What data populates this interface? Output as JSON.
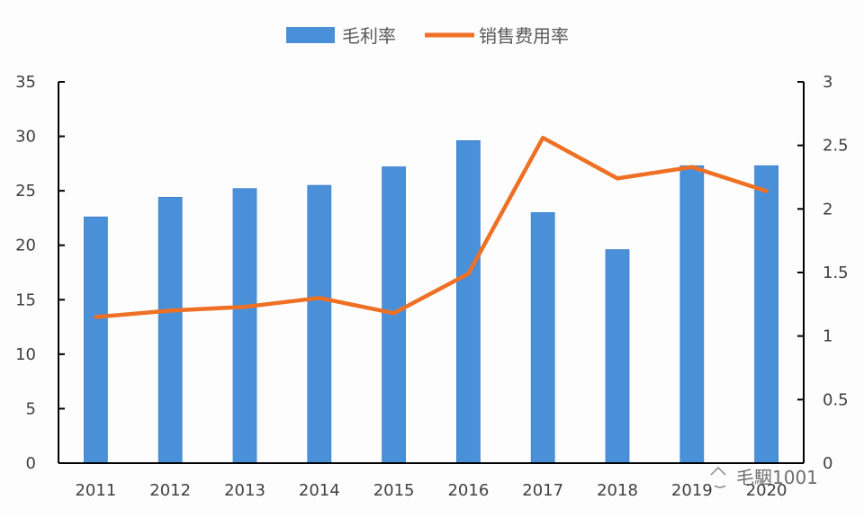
{
  "chart_data": {
    "type": "bar+line",
    "title": "",
    "categories": [
      "2011",
      "2012",
      "2013",
      "2014",
      "2015",
      "2016",
      "2017",
      "2018",
      "2019",
      "2020"
    ],
    "series": [
      {
        "name": "毛利率",
        "type": "bar",
        "axis": "left",
        "color": "#4a90d9",
        "values": [
          22.6,
          24.4,
          25.2,
          25.5,
          27.2,
          29.6,
          23.0,
          19.6,
          27.3,
          27.3
        ]
      },
      {
        "name": "销售费用率",
        "type": "line",
        "axis": "right",
        "color": "#ee7024",
        "values": [
          1.15,
          1.2,
          1.23,
          1.3,
          1.18,
          1.49,
          2.56,
          2.24,
          2.33,
          2.14
        ]
      }
    ],
    "left_axis": {
      "min": 0,
      "max": 35,
      "step": 5,
      "ticks": [
        "0",
        "5",
        "10",
        "15",
        "20",
        "25",
        "30",
        "35"
      ]
    },
    "right_axis": {
      "min": 0,
      "max": 3,
      "step": 0.5,
      "ticks": [
        "0",
        "0.5",
        "1",
        "1.5",
        "2",
        "2.5",
        "3"
      ]
    },
    "xlabel": "",
    "ylabel": "",
    "grid": false,
    "legend_position": "top"
  },
  "legend": {
    "items": [
      {
        "label": "毛利率",
        "kind": "bar",
        "color": "#4a90d9"
      },
      {
        "label": "销售费用率",
        "kind": "line",
        "color": "#ee7024"
      }
    ]
  },
  "watermark": {
    "text": "毛駰1001"
  }
}
